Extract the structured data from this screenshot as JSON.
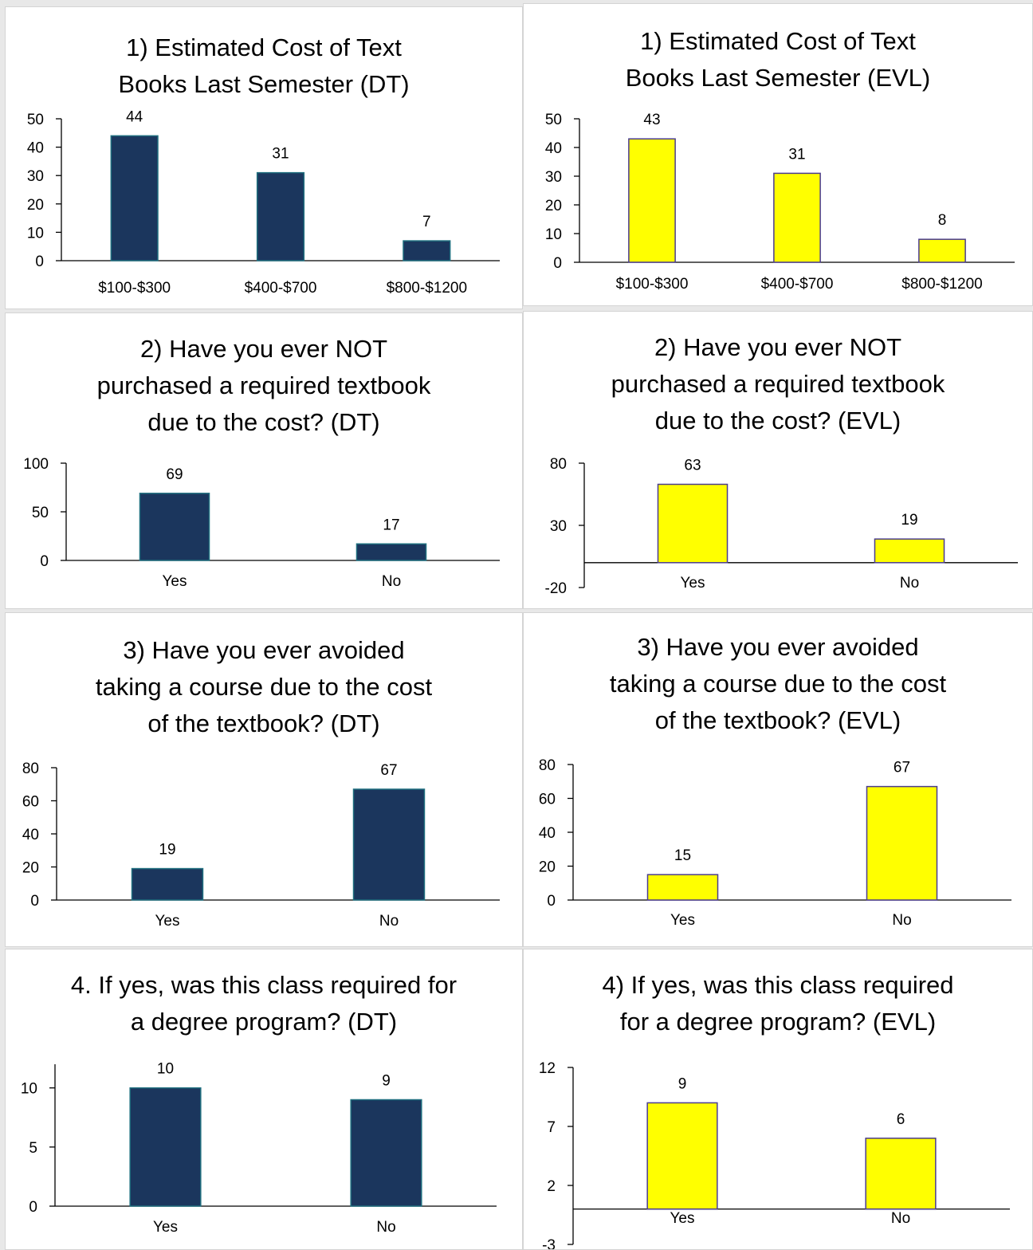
{
  "colors": {
    "dt_fill": "#1b365d",
    "dt_stroke": "#1f6f7f",
    "evl_fill": "#ffff00",
    "evl_stroke": "#4b3c8e",
    "axis": "#000000"
  },
  "chart_data": [
    {
      "type": "bar",
      "title": "1) Estimated Cost of Text Books Last Semester (DT)",
      "categories": [
        "$100-$300",
        "$400-$700",
        "$800-$1200"
      ],
      "values": [
        44,
        31,
        7
      ],
      "ylim": [
        0,
        50
      ],
      "yticks": [
        "0",
        "10",
        "20",
        "30",
        "40",
        "50"
      ],
      "color": "#1b365d",
      "xlabel": "",
      "ylabel": ""
    },
    {
      "type": "bar",
      "title": "1) Estimated Cost of Text Books Last Semester (EVL)",
      "categories": [
        "$100-$300",
        "$400-$700",
        "$800-$1200"
      ],
      "values": [
        43,
        31,
        8
      ],
      "ylim": [
        0,
        50
      ],
      "yticks": [
        "0",
        "10",
        "20",
        "30",
        "40",
        "50"
      ],
      "color": "#ffff00",
      "xlabel": "",
      "ylabel": ""
    },
    {
      "type": "bar",
      "title": "2) Have you ever NOT purchased a required textbook due to the cost? (DT)",
      "categories": [
        "Yes",
        "No"
      ],
      "values": [
        69,
        17
      ],
      "ylim": [
        0,
        100
      ],
      "yticks": [
        "0",
        "50",
        "100"
      ],
      "color": "#1b365d",
      "xlabel": "",
      "ylabel": ""
    },
    {
      "type": "bar",
      "title": "2) Have you ever NOT purchased a required textbook due to the cost? (EVL)",
      "categories": [
        "Yes",
        "No"
      ],
      "values": [
        63,
        19
      ],
      "ylim": [
        -20,
        80
      ],
      "yticks": [
        "-20",
        "30",
        "80"
      ],
      "color": "#ffff00",
      "xlabel": "",
      "ylabel": ""
    },
    {
      "type": "bar",
      "title": "3) Have you ever avoided taking a course due to the cost of the textbook? (DT)",
      "categories": [
        "Yes",
        "No"
      ],
      "values": [
        19,
        67
      ],
      "ylim": [
        0,
        80
      ],
      "yticks": [
        "0",
        "20",
        "40",
        "60",
        "80"
      ],
      "color": "#1b365d",
      "xlabel": "",
      "ylabel": ""
    },
    {
      "type": "bar",
      "title": "3) Have you ever avoided taking a course due to the cost of the textbook? (EVL)",
      "categories": [
        "Yes",
        "No"
      ],
      "values": [
        15,
        67
      ],
      "ylim": [
        0,
        80
      ],
      "yticks": [
        "0",
        "20",
        "40",
        "60",
        "80"
      ],
      "color": "#ffff00",
      "xlabel": "",
      "ylabel": ""
    },
    {
      "type": "bar",
      "title": "4. If yes, was this class required for a degree program? (DT)",
      "categories": [
        "Yes",
        "No"
      ],
      "values": [
        10,
        9
      ],
      "ylim": [
        0,
        12
      ],
      "yticks": [
        "0",
        "5",
        "10"
      ],
      "color": "#1b365d",
      "xlabel": "",
      "ylabel": ""
    },
    {
      "type": "bar",
      "title": "4) If yes, was this class required for a degree program? (EVL)",
      "categories": [
        "Yes",
        "No"
      ],
      "values": [
        9,
        6
      ],
      "ylim": [
        -3,
        12
      ],
      "yticks": [
        "-3",
        "2",
        "7",
        "12"
      ],
      "color": "#ffff00",
      "xlabel": "",
      "ylabel": ""
    }
  ]
}
